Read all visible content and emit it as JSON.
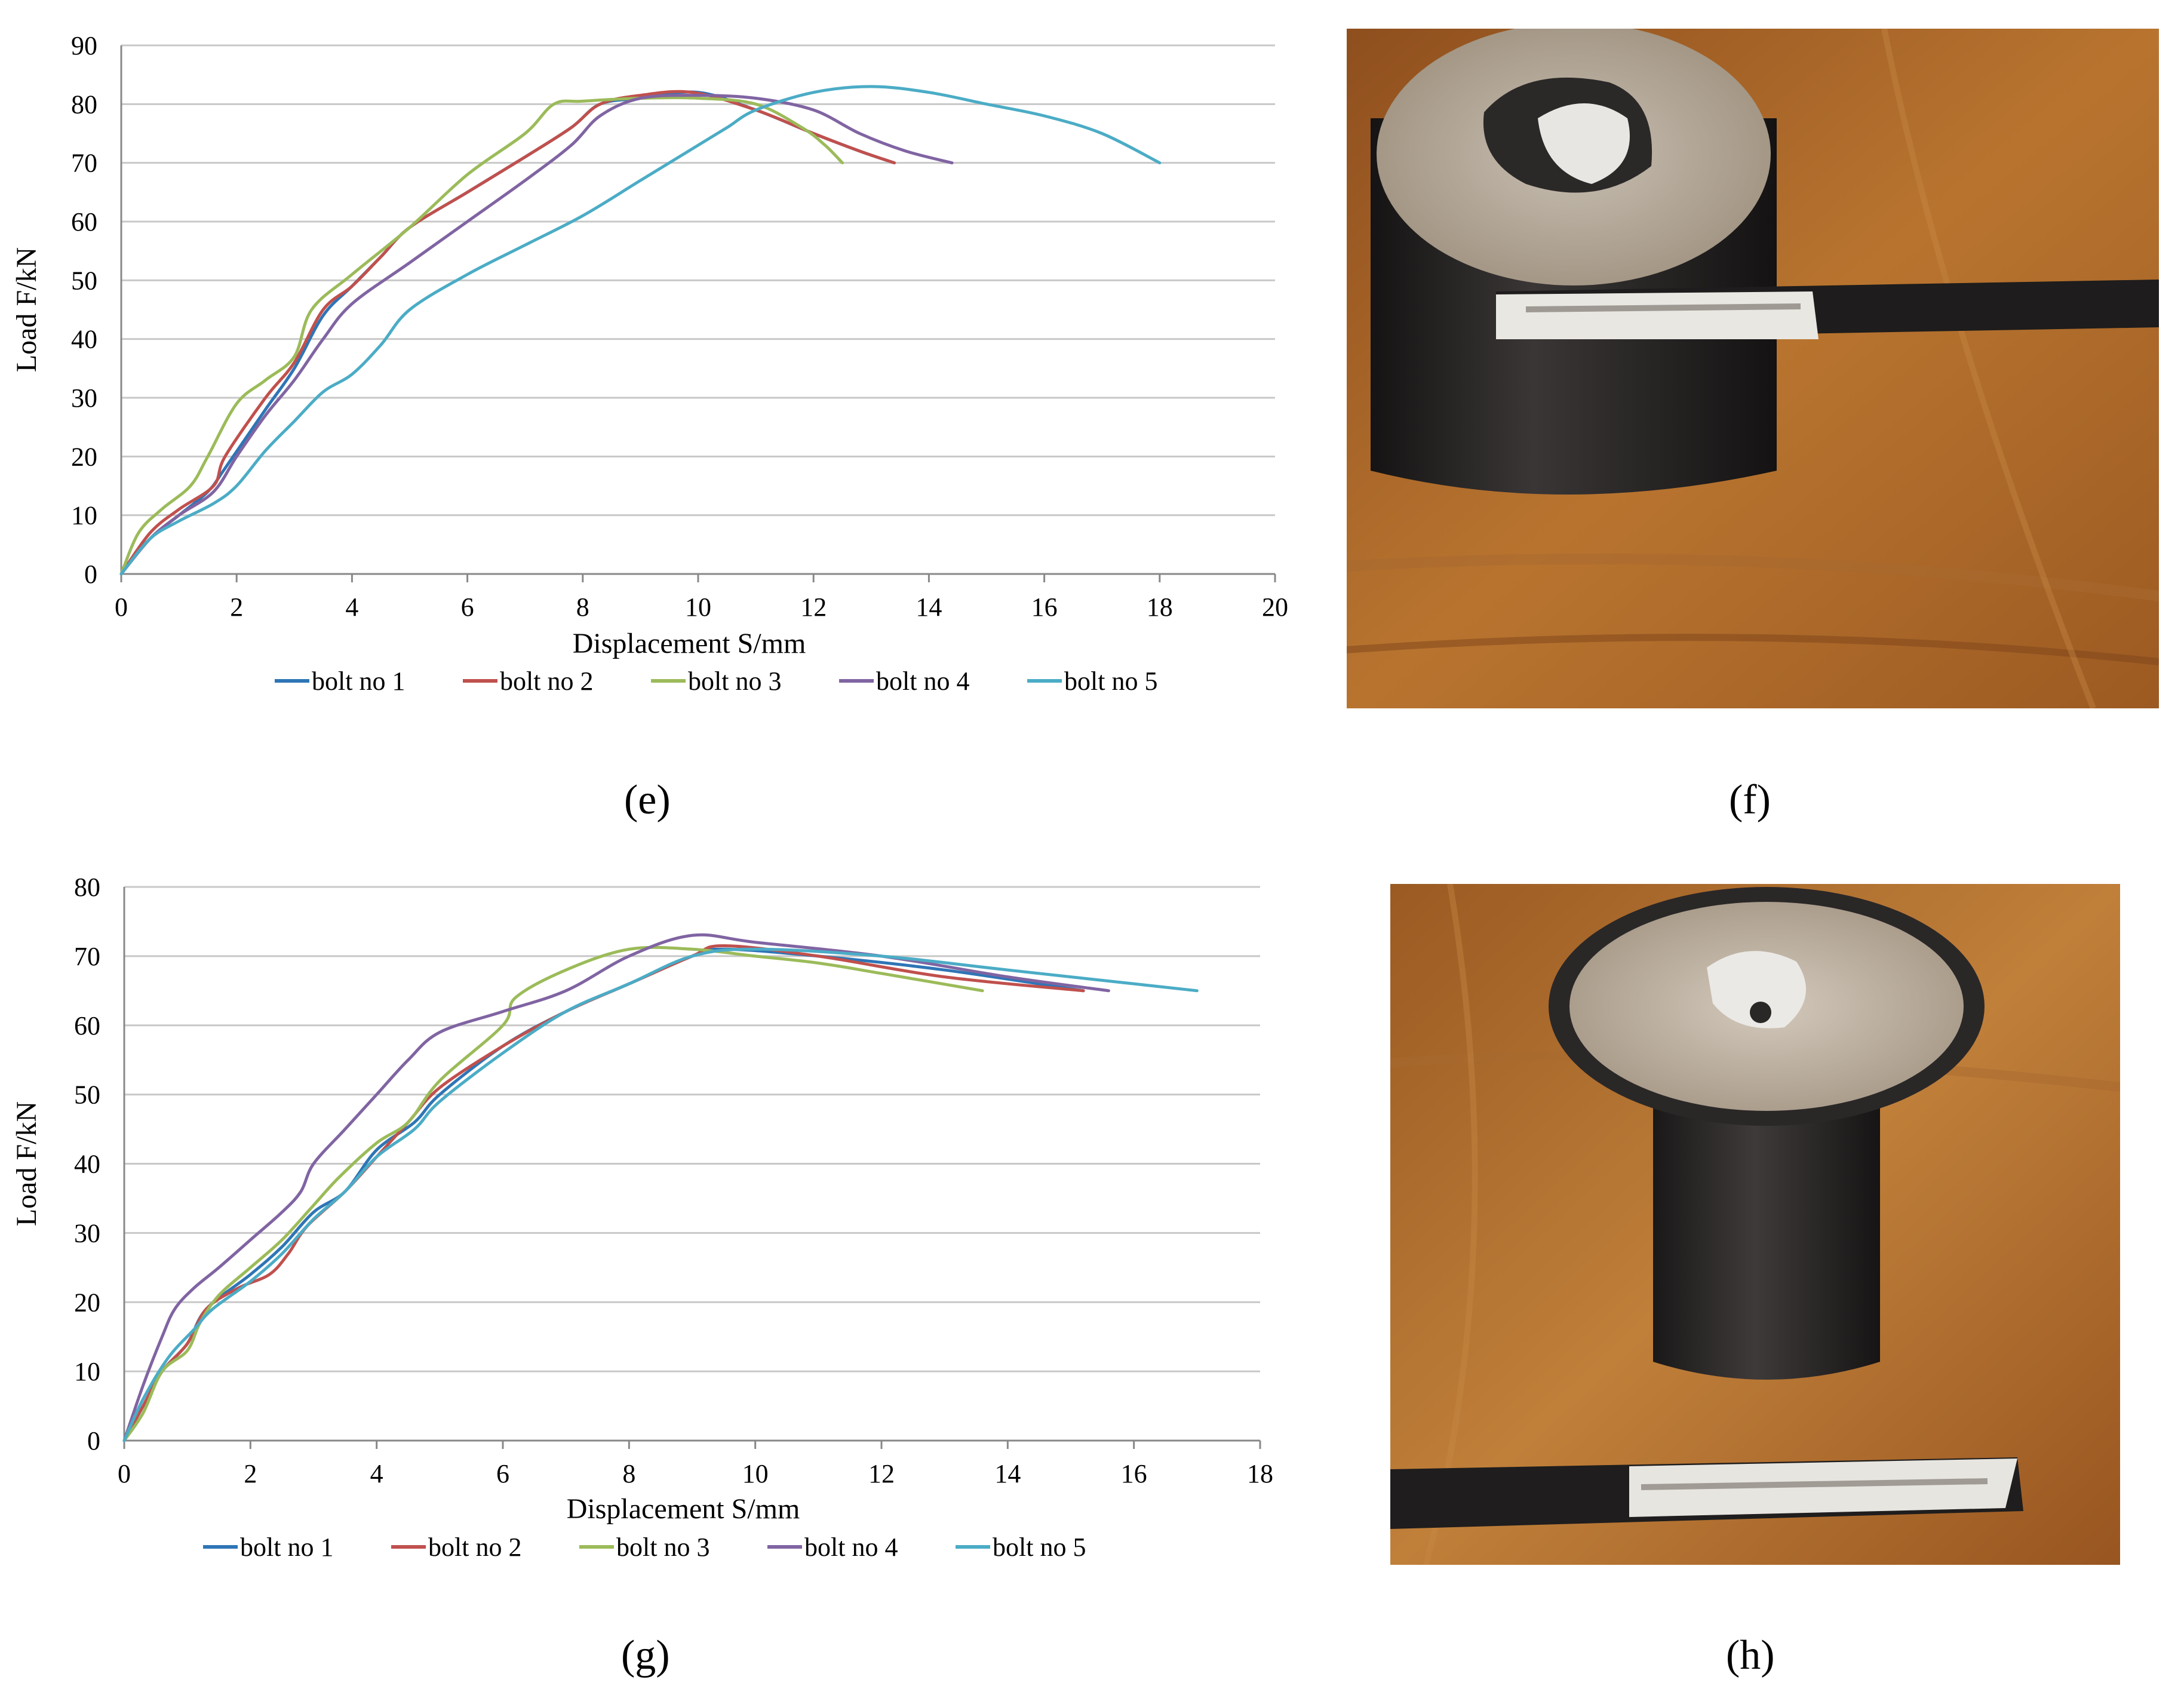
{
  "panel_labels": {
    "e": "(e)",
    "f": "(f)",
    "g": "(g)",
    "h": "(h)"
  },
  "colors": {
    "bolt_no_1": "#2e75b6",
    "bolt_no_2": "#c0504d",
    "bolt_no_3": "#9bbb59",
    "bolt_no_4": "#8064a2",
    "bolt_no_5": "#4bacc6",
    "gridline": "#c8c8c8",
    "axis": "#888888",
    "table_wood": "#b06a2c",
    "pipe_dark": "#262424",
    "grout": "#a89a88"
  },
  "photos": {
    "f": {
      "description_icon": "photo-bolt-specimen-cylinder-top"
    },
    "h": {
      "description_icon": "photo-bolt-specimen-cylinder-top"
    }
  },
  "chart_data": [
    {
      "type": "line",
      "panel": "(e)",
      "xlabel": "Displacement S/mm",
      "ylabel": "Load F/kN",
      "xlim": [
        0,
        20
      ],
      "ylim": [
        0,
        90
      ],
      "xticks": [
        0,
        2,
        4,
        6,
        8,
        10,
        12,
        14,
        16,
        18,
        20
      ],
      "yticks": [
        0,
        10,
        20,
        30,
        40,
        50,
        60,
        70,
        80,
        90
      ],
      "grid": true,
      "legend_position": "bottom",
      "series": [
        {
          "name": "bolt no 1",
          "points": [
            [
              0,
              0
            ],
            [
              0.5,
              6
            ],
            [
              1,
              10
            ],
            [
              1.5,
              14
            ],
            [
              1.8,
              18
            ],
            [
              2.5,
              28
            ],
            [
              3,
              35
            ],
            [
              3.5,
              44
            ],
            [
              4,
              49
            ],
            [
              4.5,
              54
            ],
            [
              5,
              59
            ],
            [
              6,
              65
            ],
            [
              7,
              71
            ],
            [
              7.8,
              76
            ],
            [
              8.3,
              80
            ],
            [
              9,
              81
            ],
            [
              10,
              82
            ],
            [
              11,
              79
            ],
            [
              12,
              75
            ],
            [
              12.8,
              72
            ],
            [
              13.4,
              70
            ]
          ]
        },
        {
          "name": "bolt no 2",
          "points": [
            [
              0,
              0
            ],
            [
              0.5,
              7
            ],
            [
              1,
              11
            ],
            [
              1.6,
              15
            ],
            [
              1.8,
              20
            ],
            [
              2.5,
              30
            ],
            [
              3,
              36
            ],
            [
              3.5,
              45
            ],
            [
              4,
              49
            ],
            [
              4.5,
              54
            ],
            [
              5,
              59
            ],
            [
              6,
              65
            ],
            [
              7,
              71
            ],
            [
              7.8,
              76
            ],
            [
              8.3,
              80
            ],
            [
              9,
              81.5
            ],
            [
              9.9,
              82
            ],
            [
              11,
              79
            ],
            [
              12,
              75
            ],
            [
              12.8,
              72
            ],
            [
              13.4,
              70
            ]
          ]
        },
        {
          "name": "bolt no 3",
          "points": [
            [
              0,
              0
            ],
            [
              0.3,
              7
            ],
            [
              0.7,
              11
            ],
            [
              1.2,
              15
            ],
            [
              1.5,
              20
            ],
            [
              2,
              29
            ],
            [
              2.5,
              33
            ],
            [
              3,
              37
            ],
            [
              3.3,
              45
            ],
            [
              4,
              51
            ],
            [
              5,
              59
            ],
            [
              6,
              68
            ],
            [
              7,
              75
            ],
            [
              7.5,
              80
            ],
            [
              8,
              80.5
            ],
            [
              9,
              81
            ],
            [
              10,
              81
            ],
            [
              11,
              80
            ],
            [
              11.8,
              76
            ],
            [
              12.2,
              73
            ],
            [
              12.5,
              70
            ]
          ]
        },
        {
          "name": "bolt no 4",
          "points": [
            [
              0,
              0
            ],
            [
              0.5,
              6
            ],
            [
              1,
              10
            ],
            [
              1.6,
              14
            ],
            [
              2,
              20
            ],
            [
              2.5,
              27
            ],
            [
              3,
              33
            ],
            [
              3.5,
              40
            ],
            [
              4,
              46
            ],
            [
              5,
              53
            ],
            [
              6,
              60
            ],
            [
              7,
              67
            ],
            [
              7.8,
              73
            ],
            [
              8.3,
              78
            ],
            [
              9,
              81
            ],
            [
              10,
              81.5
            ],
            [
              11,
              81
            ],
            [
              12,
              79
            ],
            [
              12.8,
              75
            ],
            [
              13.6,
              72
            ],
            [
              14.4,
              70
            ]
          ]
        },
        {
          "name": "bolt no 5",
          "points": [
            [
              0,
              0
            ],
            [
              0.5,
              6
            ],
            [
              1,
              9
            ],
            [
              1.6,
              12
            ],
            [
              2,
              15
            ],
            [
              2.5,
              21
            ],
            [
              3,
              26
            ],
            [
              3.5,
              31
            ],
            [
              4,
              34
            ],
            [
              4.5,
              39
            ],
            [
              5,
              45
            ],
            [
              6,
              51
            ],
            [
              7,
              56
            ],
            [
              8,
              61
            ],
            [
              9,
              67
            ],
            [
              10,
              73
            ],
            [
              10.5,
              76
            ],
            [
              11,
              79
            ],
            [
              12,
              82
            ],
            [
              13,
              83
            ],
            [
              14,
              82
            ],
            [
              15,
              80
            ],
            [
              16,
              78
            ],
            [
              17,
              75
            ],
            [
              18,
              70
            ]
          ]
        }
      ]
    },
    {
      "type": "line",
      "panel": "(g)",
      "xlabel": "Displacement S/mm",
      "ylabel": "Load F/kN",
      "xlim": [
        0,
        18
      ],
      "ylim": [
        0,
        80
      ],
      "xticks": [
        0,
        2,
        4,
        6,
        8,
        10,
        12,
        14,
        16,
        18
      ],
      "yticks": [
        0,
        10,
        20,
        30,
        40,
        50,
        60,
        70,
        80
      ],
      "grid": true,
      "legend_position": "bottom",
      "series": [
        {
          "name": "bolt no 1",
          "points": [
            [
              0,
              0
            ],
            [
              0.3,
              5
            ],
            [
              0.6,
              10
            ],
            [
              1,
              14
            ],
            [
              1.3,
              19
            ],
            [
              2,
              24
            ],
            [
              2.5,
              28
            ],
            [
              3,
              33
            ],
            [
              3.5,
              36
            ],
            [
              4,
              42
            ],
            [
              4.6,
              46
            ],
            [
              5,
              50
            ],
            [
              6,
              57
            ],
            [
              7,
              62
            ],
            [
              8,
              66
            ],
            [
              9,
              70
            ],
            [
              9.5,
              71
            ],
            [
              11,
              70
            ],
            [
              13,
              68
            ],
            [
              15.2,
              65
            ]
          ]
        },
        {
          "name": "bolt no 2",
          "points": [
            [
              0,
              0
            ],
            [
              0.3,
              5
            ],
            [
              0.6,
              10
            ],
            [
              1,
              14
            ],
            [
              1.3,
              19
            ],
            [
              1.8,
              22
            ],
            [
              2.3,
              24
            ],
            [
              2.6,
              27
            ],
            [
              2.9,
              31
            ],
            [
              3.5,
              36
            ],
            [
              4,
              41
            ],
            [
              4.5,
              46
            ],
            [
              5,
              51
            ],
            [
              6,
              57
            ],
            [
              7,
              62
            ],
            [
              8,
              66
            ],
            [
              9,
              70
            ],
            [
              9.5,
              71.5
            ],
            [
              11,
              70
            ],
            [
              13,
              67
            ],
            [
              15.2,
              65
            ]
          ]
        },
        {
          "name": "bolt no 3",
          "points": [
            [
              0,
              0
            ],
            [
              0.3,
              4
            ],
            [
              0.6,
              10
            ],
            [
              1,
              13
            ],
            [
              1.2,
              17
            ],
            [
              1.5,
              21
            ],
            [
              2,
              25
            ],
            [
              2.5,
              29
            ],
            [
              3,
              34
            ],
            [
              3.4,
              38
            ],
            [
              4,
              43
            ],
            [
              4.5,
              46
            ],
            [
              5,
              52
            ],
            [
              6,
              60
            ],
            [
              6.2,
              64
            ],
            [
              7,
              68
            ],
            [
              8,
              71
            ],
            [
              9,
              71
            ],
            [
              10,
              70
            ],
            [
              11,
              69
            ],
            [
              12,
              67.5
            ],
            [
              13.6,
              65
            ]
          ]
        },
        {
          "name": "bolt no 4",
          "points": [
            [
              0,
              0
            ],
            [
              0.3,
              8
            ],
            [
              0.6,
              15
            ],
            [
              0.8,
              19
            ],
            [
              1.1,
              22
            ],
            [
              1.5,
              25
            ],
            [
              2,
              29
            ],
            [
              2.5,
              33
            ],
            [
              2.8,
              36
            ],
            [
              3,
              40
            ],
            [
              3.5,
              45
            ],
            [
              4,
              50
            ],
            [
              4.5,
              55
            ],
            [
              5,
              59
            ],
            [
              6,
              62
            ],
            [
              7,
              65
            ],
            [
              8,
              70
            ],
            [
              9,
              73
            ],
            [
              10,
              72
            ],
            [
              12,
              70
            ],
            [
              14,
              67
            ],
            [
              15.6,
              65
            ]
          ]
        },
        {
          "name": "bolt no 5",
          "points": [
            [
              0,
              0
            ],
            [
              0.3,
              6
            ],
            [
              0.7,
              12
            ],
            [
              1.1,
              16
            ],
            [
              1.4,
              19
            ],
            [
              2,
              23
            ],
            [
              2.5,
              27
            ],
            [
              3,
              32
            ],
            [
              3.5,
              36
            ],
            [
              4,
              41
            ],
            [
              4.6,
              45
            ],
            [
              5,
              49
            ],
            [
              6,
              56
            ],
            [
              7,
              62
            ],
            [
              8,
              66
            ],
            [
              9,
              70
            ],
            [
              10,
              71
            ],
            [
              12,
              70
            ],
            [
              14,
              68
            ],
            [
              17,
              65
            ]
          ]
        }
      ]
    }
  ]
}
